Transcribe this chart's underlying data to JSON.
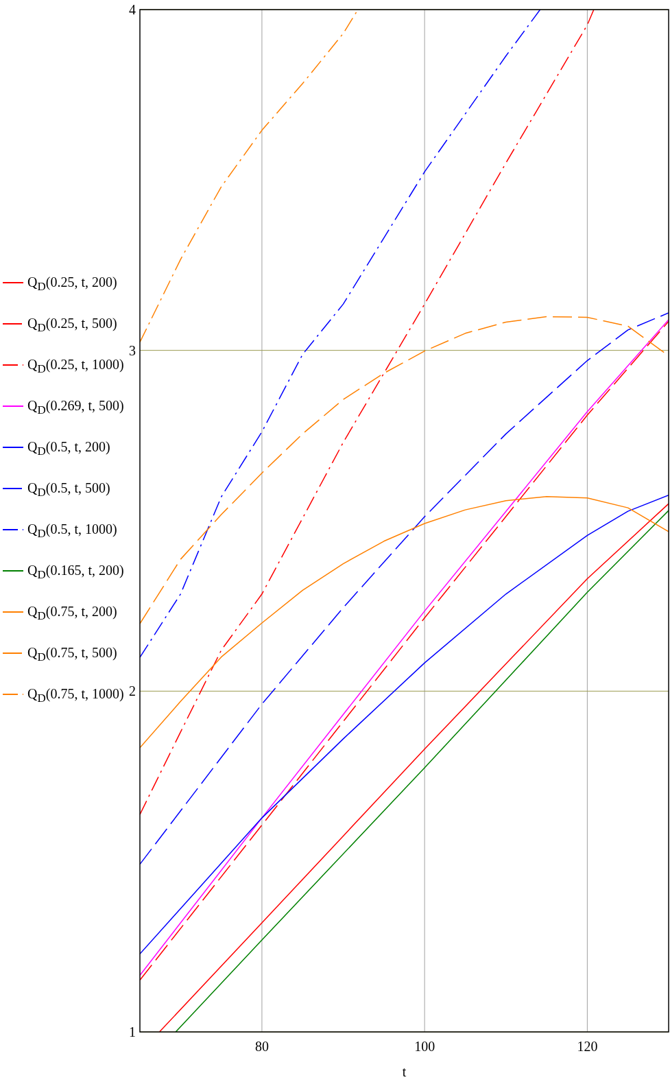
{
  "chart_data": {
    "type": "line",
    "xlabel": "t",
    "xlim": [
      65,
      130
    ],
    "ylim": [
      1,
      4
    ],
    "xticks": [
      80,
      100,
      120
    ],
    "yticks": [
      1,
      2,
      3,
      4
    ],
    "grid": true,
    "legend": "left",
    "series": [
      {
        "name": "Q$_{D}$(0.25, t, 200)",
        "color": "#ff0000",
        "line_style": "solid",
        "x": [
          67.4,
          80,
          90,
          100,
          110,
          120,
          130
        ],
        "values": [
          1.0,
          1.32,
          1.575,
          1.83,
          2.08,
          2.33,
          2.55
        ]
      },
      {
        "name": "Q$_{D}$(0.25, t, 500)",
        "color": "#ff0000",
        "line_style": "dashed",
        "x": [
          65,
          80,
          100,
          120,
          130
        ],
        "values": [
          1.152,
          1.607,
          2.215,
          2.81,
          3.085
        ]
      },
      {
        "name": "Q$_{D}$(0.25, t, 1000)",
        "color": "#ff0000",
        "line_style": "dashdot",
        "x": [
          65,
          70,
          75,
          80,
          90,
          100,
          110,
          120,
          120.8
        ],
        "values": [
          1.638,
          1.88,
          2.12,
          2.285,
          2.73,
          3.136,
          3.55,
          3.955,
          4.0
        ]
      },
      {
        "name": "Q$_{D}$(0.269, t, 500)",
        "color": "#ff00ff",
        "line_style": "solid",
        "x": [
          65,
          80,
          100,
          120,
          130
        ],
        "values": [
          1.166,
          1.628,
          2.235,
          2.82,
          3.09
        ]
      },
      {
        "name": "Q$_{D}$(0.5, t, 200)",
        "color": "#0000ff",
        "line_style": "solid",
        "x": [
          65,
          80,
          90,
          100,
          110,
          120,
          125,
          130
        ],
        "values": [
          1.229,
          1.628,
          1.86,
          2.083,
          2.285,
          2.457,
          2.528,
          2.575
        ]
      },
      {
        "name": "Q$_{D}$(0.5, t, 500)",
        "color": "#0000ff",
        "line_style": "dashed",
        "x": [
          65,
          80,
          90,
          100,
          110,
          120,
          125,
          130
        ],
        "values": [
          1.492,
          1.962,
          2.245,
          2.512,
          2.755,
          2.97,
          3.06,
          3.11
        ]
      },
      {
        "name": "Q$_{D}$(0.5, t, 1000)",
        "color": "#0000ff",
        "line_style": "dashdot",
        "x": [
          65,
          70,
          75,
          80,
          85,
          90,
          100,
          110,
          114.2
        ],
        "values": [
          2.099,
          2.285,
          2.57,
          2.761,
          2.988,
          3.136,
          3.524,
          3.864,
          4.0
        ]
      },
      {
        "name": "Q$_{D}$(0.165, t, 200)",
        "color": "#008000",
        "line_style": "solid",
        "x": [
          69.4,
          80,
          100,
          120,
          130
        ],
        "values": [
          1.0,
          1.27,
          1.775,
          2.29,
          2.53
        ]
      },
      {
        "name": "Q$_{D}$(0.75, t, 200)",
        "color": "#ff8000",
        "line_style": "solid",
        "x": [
          65,
          70,
          75,
          80,
          85,
          90,
          95,
          100,
          105,
          110,
          115,
          120,
          125,
          130
        ],
        "values": [
          1.834,
          1.97,
          2.1,
          2.2,
          2.296,
          2.374,
          2.44,
          2.492,
          2.532,
          2.559,
          2.571,
          2.567,
          2.538,
          2.468
        ]
      },
      {
        "name": "Q$_{D}$(0.75, t, 500)",
        "color": "#ff8000",
        "line_style": "dashed",
        "x": [
          65,
          70,
          75,
          80,
          85,
          90,
          95,
          100,
          105,
          110,
          115,
          120,
          125,
          130
        ],
        "values": [
          2.198,
          2.387,
          2.518,
          2.64,
          2.755,
          2.856,
          2.933,
          2.998,
          3.05,
          3.083,
          3.099,
          3.097,
          3.071,
          2.984
        ]
      },
      {
        "name": "Q$_{D}$(0.75, t, 1000)",
        "color": "#ff8000",
        "line_style": "dashdot",
        "x": [
          65,
          70,
          75,
          80,
          85,
          90,
          91.8
        ],
        "values": [
          3.024,
          3.267,
          3.48,
          3.646,
          3.783,
          3.93,
          4.0
        ]
      }
    ]
  }
}
